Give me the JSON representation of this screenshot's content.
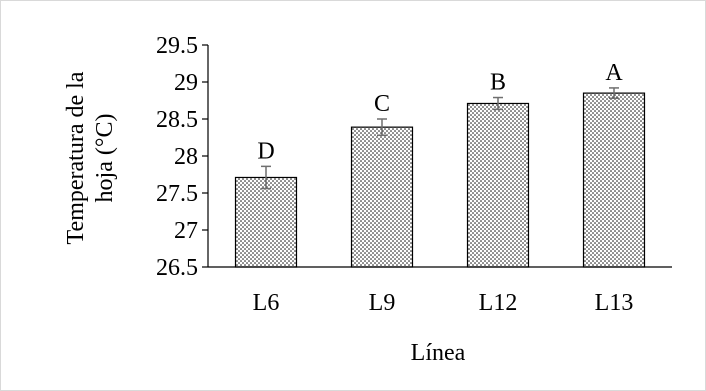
{
  "chart_data": {
    "type": "bar",
    "categories": [
      "L6",
      "L9",
      "L12",
      "L13"
    ],
    "values": [
      27.71,
      28.39,
      28.71,
      28.85
    ],
    "errors": [
      0.15,
      0.11,
      0.08,
      0.07
    ],
    "significance_letters": [
      "D",
      "C",
      "B",
      "A"
    ],
    "title": "",
    "xlabel": "Línea",
    "ylabel_lines": [
      "Temperatura de la",
      "hoja (°C)"
    ],
    "ylim": [
      26.5,
      29.5
    ],
    "yticks": [
      "26.5",
      "27",
      "27.5",
      "28",
      "28.5",
      "29",
      "29.5"
    ],
    "grid": false,
    "legend": "none",
    "bar_fill": "dotted",
    "colors": {
      "bar_border": "#000000",
      "bar_dots": "#000000",
      "error_bar": "#6f6f6f",
      "frame": "#d9d9d9"
    }
  }
}
